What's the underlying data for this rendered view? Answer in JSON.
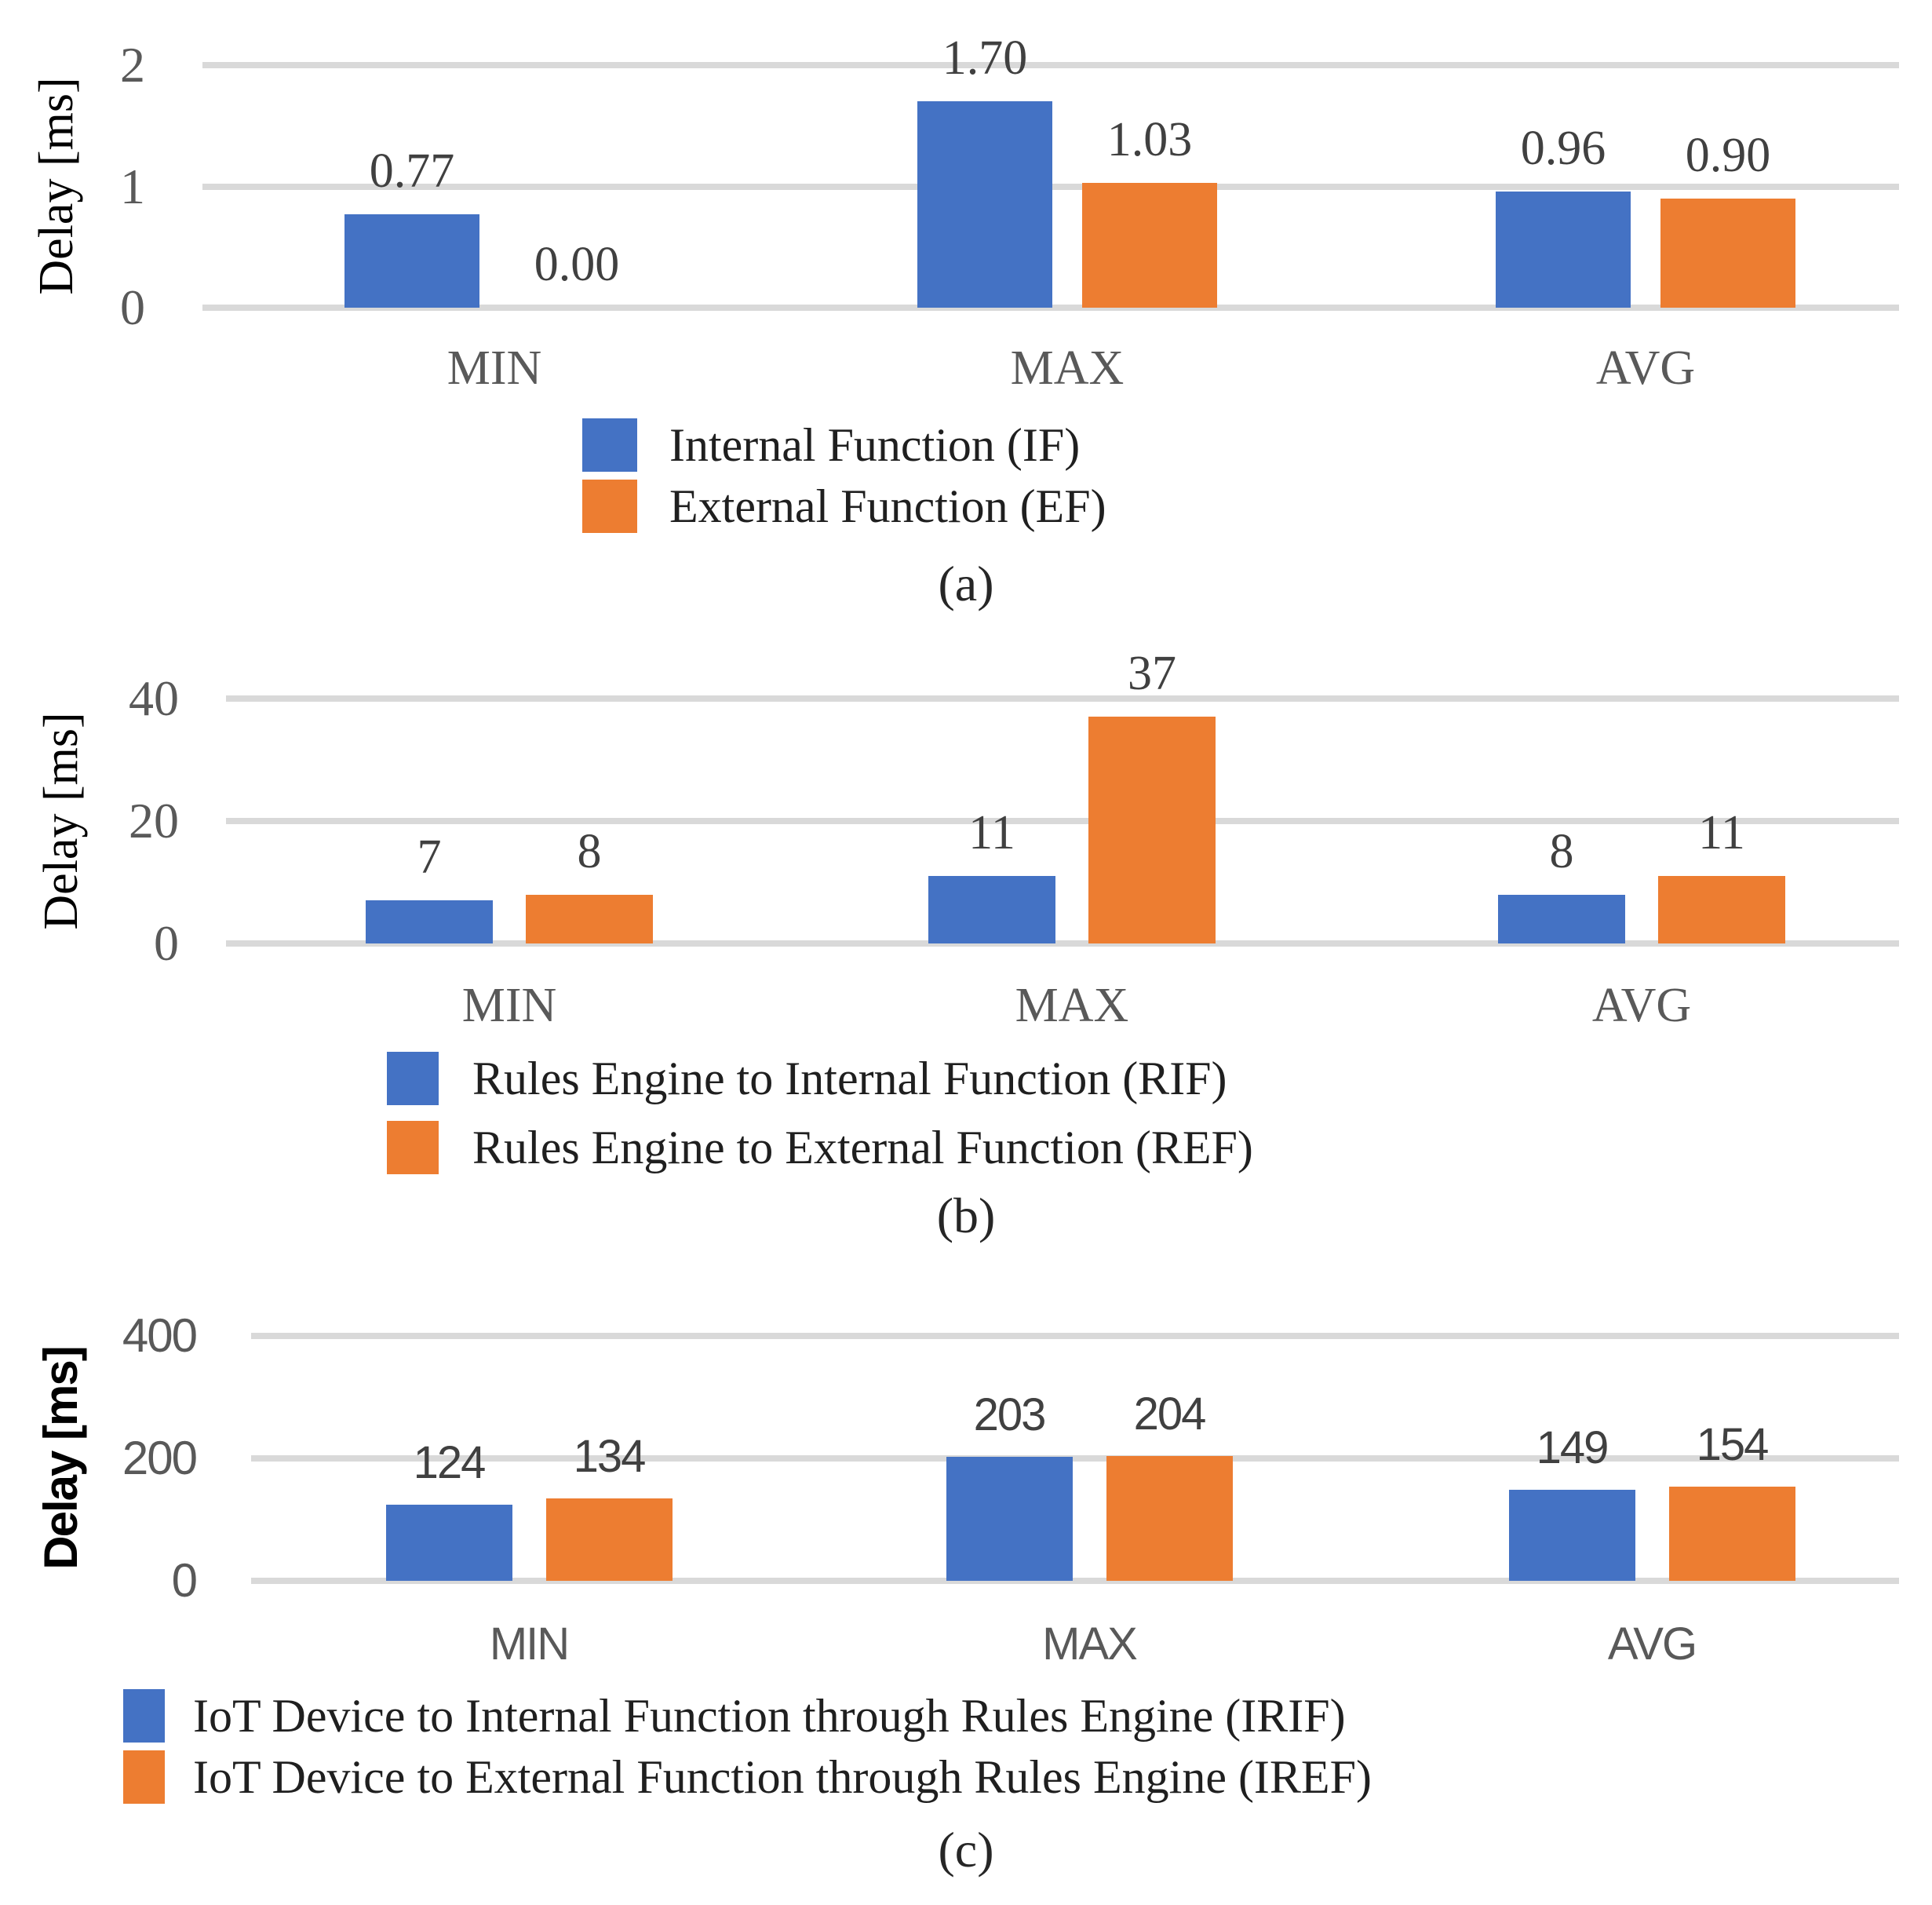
{
  "style": {
    "background": "#FFFFFF",
    "series_colors": [
      "#4472C4",
      "#ED7D31"
    ],
    "gridline_color": "#D9D9D9",
    "tick_text_color": "#595959",
    "data_label_color": "#404040",
    "legend_text_color": "#1F1F1F",
    "caption_color": "#262626"
  },
  "chart_data": [
    {
      "type": "bar",
      "caption": "(a)",
      "ylabel": "Delay [ms]",
      "categories": [
        "MIN",
        "MAX",
        "AVG"
      ],
      "ylim": [
        0,
        2
      ],
      "yticks": [
        "0",
        "1",
        "2"
      ],
      "grid": true,
      "legend_position": "bottom",
      "series": [
        {
          "name": "Internal Function (IF)",
          "values": [
            0.77,
            1.7,
            0.96
          ]
        },
        {
          "name": "External Function (EF)",
          "values": [
            0.0,
            1.03,
            0.9
          ]
        }
      ],
      "data_labels": [
        [
          "0.77",
          "1.70",
          "0.96"
        ],
        [
          "0.00",
          "1.03",
          "0.90"
        ]
      ]
    },
    {
      "type": "bar",
      "caption": "(b)",
      "ylabel": "Delay [ms]",
      "categories": [
        "MIN",
        "MAX",
        "AVG"
      ],
      "ylim": [
        0,
        40
      ],
      "yticks": [
        "0",
        "20",
        "40"
      ],
      "grid": true,
      "legend_position": "bottom",
      "series": [
        {
          "name": "Rules Engine to Internal Function (RIF)",
          "values": [
            7,
            11,
            8
          ]
        },
        {
          "name": "Rules Engine to External Function (REF)",
          "values": [
            8,
            37,
            11
          ]
        }
      ],
      "data_labels": [
        [
          "7",
          "11",
          "8"
        ],
        [
          "8",
          "37",
          "11"
        ]
      ]
    },
    {
      "type": "bar",
      "caption": "(c)",
      "ylabel": "Delay [ms]",
      "categories": [
        "MIN",
        "MAX",
        "AVG"
      ],
      "ylim": [
        0,
        400
      ],
      "yticks": [
        "0",
        "200",
        "400"
      ],
      "grid": true,
      "legend_position": "bottom",
      "series": [
        {
          "name": "IoT Device to Internal Function through Rules Engine (IRIF)",
          "values": [
            124,
            203,
            149
          ]
        },
        {
          "name": "IoT Device to External Function through Rules Engine (IREF)",
          "values": [
            134,
            204,
            154
          ]
        }
      ],
      "data_labels": [
        [
          "124",
          "203",
          "149"
        ],
        [
          "134",
          "204",
          "154"
        ]
      ]
    }
  ]
}
